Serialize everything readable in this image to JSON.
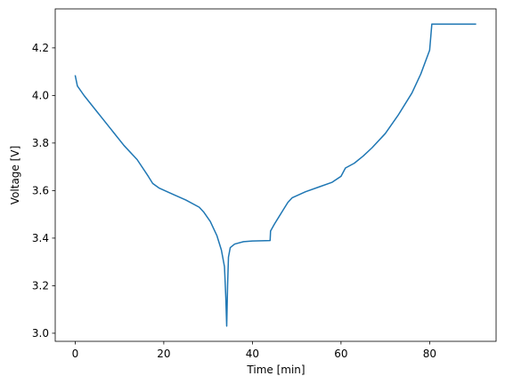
{
  "chart_data": {
    "type": "line",
    "xlabel": "Time [min]",
    "ylabel": "Voltage [V]",
    "x": [
      0,
      0.5,
      2,
      5,
      8,
      11,
      14,
      16.5,
      17.5,
      19,
      22,
      25,
      28,
      29,
      30.5,
      32,
      33,
      33.7,
      34,
      34.2,
      34.4,
      34.6,
      35,
      36,
      38,
      40,
      44,
      44.1,
      45,
      46,
      47,
      48,
      49,
      52,
      55,
      58,
      60,
      61,
      63,
      65,
      67,
      70,
      73,
      76,
      78,
      80,
      80.5,
      90.5
    ],
    "series": [
      {
        "color": "#1f77b4",
        "values": [
          4.085,
          4.04,
          4.0,
          3.93,
          3.86,
          3.79,
          3.73,
          3.66,
          3.63,
          3.61,
          3.585,
          3.56,
          3.53,
          3.51,
          3.47,
          3.41,
          3.35,
          3.28,
          3.15,
          3.03,
          3.2,
          3.32,
          3.36,
          3.375,
          3.385,
          3.388,
          3.39,
          3.43,
          3.46,
          3.49,
          3.52,
          3.55,
          3.57,
          3.595,
          3.615,
          3.635,
          3.66,
          3.695,
          3.715,
          3.745,
          3.78,
          3.84,
          3.92,
          4.01,
          4.09,
          4.19,
          4.3,
          4.3
        ]
      }
    ],
    "xlim": [
      -4.5,
      95
    ],
    "ylim": [
      2.966,
      4.364
    ],
    "xticks": [
      0,
      20,
      40,
      60,
      80
    ],
    "yticks": [
      {
        "value": 3,
        "label": "3.0"
      },
      3.2,
      3.4,
      3.6,
      3.8,
      {
        "value": 4,
        "label": "4.0"
      },
      4.2
    ]
  }
}
